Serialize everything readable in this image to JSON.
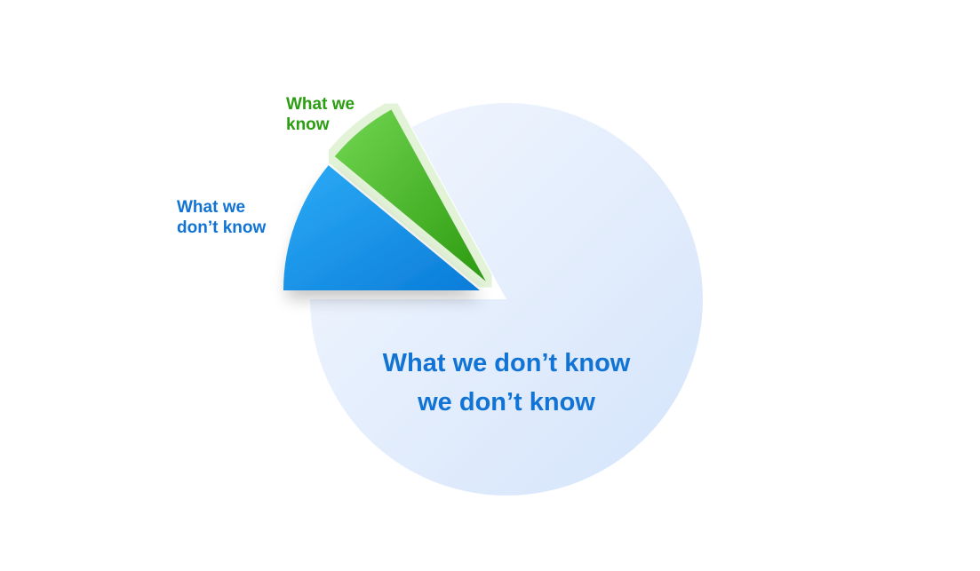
{
  "chart_data": {
    "type": "pie",
    "title": "",
    "exploded": [
      "What we don’t know",
      "What we know"
    ],
    "slices": [
      {
        "label": "What we don’t know we don’t know",
        "label_lines": [
          "What we don’t know",
          "we don’t know"
        ],
        "value": 83,
        "color": "#dce9fc"
      },
      {
        "label": "What we don’t know",
        "label_lines": [
          "What we",
          "don’t know"
        ],
        "value": 11,
        "color": "#1a93e8"
      },
      {
        "label": "What we know",
        "label_lines": [
          "What we",
          "know"
        ],
        "value": 6,
        "color": "#4cb82e"
      }
    ],
    "label_colors": {
      "blue": "#1173d4",
      "green": "#2a9d10"
    }
  }
}
